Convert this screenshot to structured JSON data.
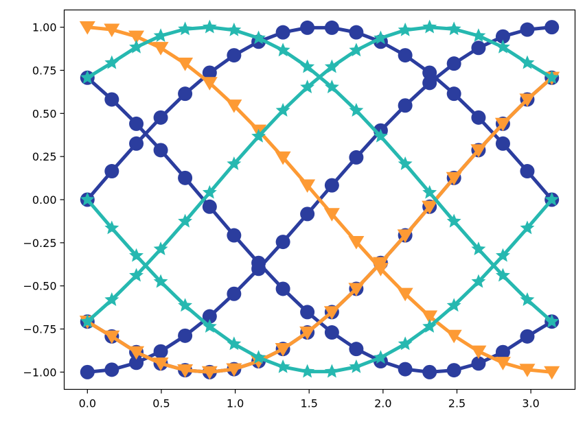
{
  "chart_data": {
    "type": "line",
    "title": "",
    "xlabel": "",
    "ylabel": "",
    "xlim": [
      -0.157,
      3.299
    ],
    "ylim": [
      -1.1,
      1.1
    ],
    "x_ticks": [
      0.0,
      0.5,
      1.0,
      1.5,
      2.0,
      2.5,
      3.0
    ],
    "x_tick_labels": [
      "0.0",
      "0.5",
      "1.0",
      "1.5",
      "2.0",
      "2.5",
      "3.0"
    ],
    "y_ticks": [
      -1.0,
      -0.75,
      -0.5,
      -0.25,
      0.0,
      0.25,
      0.5,
      0.75,
      1.0
    ],
    "y_tick_labels": [
      "−1.00",
      "−0.75",
      "−0.50",
      "−0.25",
      "0.00",
      "0.25",
      "0.50",
      "0.75",
      "1.00"
    ],
    "grid": false,
    "legend": "none",
    "x": [
      0.0,
      0.165,
      0.331,
      0.496,
      0.661,
      0.827,
      0.992,
      1.158,
      1.323,
      1.488,
      1.654,
      1.819,
      1.984,
      2.15,
      2.315,
      2.48,
      2.646,
      2.811,
      2.976,
      3.142
    ],
    "series": [
      {
        "color": "#2b3d9e",
        "marker": "circle",
        "values": [
          0.0,
          0.165,
          0.325,
          0.476,
          0.614,
          0.736,
          0.837,
          0.916,
          0.97,
          0.997,
          0.997,
          0.97,
          0.916,
          0.837,
          0.736,
          0.614,
          0.476,
          0.325,
          0.165,
          0.0
        ]
      },
      {
        "color": "#2b3d9e",
        "marker": "circle",
        "values": [
          -1.0,
          -0.986,
          -0.946,
          -0.88,
          -0.789,
          -0.677,
          -0.546,
          -0.401,
          -0.245,
          -0.083,
          0.083,
          0.245,
          0.401,
          0.546,
          0.677,
          0.789,
          0.88,
          0.946,
          0.986,
          1.0
        ]
      },
      {
        "color": "#2b3d9e",
        "marker": "circle",
        "values": [
          0.707,
          0.581,
          0.44,
          0.287,
          0.126,
          -0.041,
          -0.207,
          -0.367,
          -0.517,
          -0.652,
          -0.77,
          -0.866,
          -0.937,
          -0.983,
          -1.0,
          -0.989,
          -0.95,
          -0.884,
          -0.793,
          -0.707
        ]
      },
      {
        "color": "#2b3d9e",
        "marker": "circle",
        "values": [
          -0.707,
          -0.793,
          -0.884,
          -0.95,
          -0.989,
          -1.0,
          -0.983,
          -0.937,
          -0.866,
          -0.77,
          -0.652,
          -0.517,
          -0.367,
          -0.207,
          -0.041,
          0.126,
          0.287,
          0.44,
          0.581,
          0.707
        ]
      },
      {
        "color": "#fd9a34",
        "marker": "triangle-down",
        "values": [
          1.0,
          0.986,
          0.946,
          0.88,
          0.789,
          0.677,
          0.546,
          0.401,
          0.245,
          0.083,
          -0.083,
          -0.245,
          -0.401,
          -0.546,
          -0.677,
          -0.789,
          -0.88,
          -0.946,
          -0.986,
          -1.0
        ]
      },
      {
        "color": "#fd9a34",
        "marker": "triangle-down",
        "values": [
          -0.707,
          -0.793,
          -0.884,
          -0.95,
          -0.989,
          -1.0,
          -0.983,
          -0.937,
          -0.866,
          -0.77,
          -0.652,
          -0.517,
          -0.367,
          -0.207,
          -0.041,
          0.126,
          0.287,
          0.44,
          0.581,
          0.707
        ]
      },
      {
        "color": "#26b8b0",
        "marker": "star",
        "values": [
          0.707,
          0.793,
          0.884,
          0.95,
          0.989,
          1.0,
          0.983,
          0.937,
          0.866,
          0.77,
          0.652,
          0.517,
          0.367,
          0.207,
          0.041,
          -0.126,
          -0.287,
          -0.44,
          -0.581,
          -0.707
        ]
      },
      {
        "color": "#26b8b0",
        "marker": "star",
        "values": [
          -0.707,
          -0.581,
          -0.44,
          -0.287,
          -0.126,
          0.041,
          0.207,
          0.367,
          0.517,
          0.652,
          0.77,
          0.866,
          0.937,
          0.983,
          1.0,
          0.989,
          0.95,
          0.884,
          0.793,
          0.707
        ]
      },
      {
        "color": "#26b8b0",
        "marker": "star",
        "values": [
          0.0,
          -0.165,
          -0.325,
          -0.476,
          -0.614,
          -0.736,
          -0.837,
          -0.916,
          -0.97,
          -0.997,
          -0.997,
          -0.97,
          -0.916,
          -0.837,
          -0.736,
          -0.614,
          -0.476,
          -0.325,
          -0.165,
          0.0
        ]
      }
    ]
  }
}
